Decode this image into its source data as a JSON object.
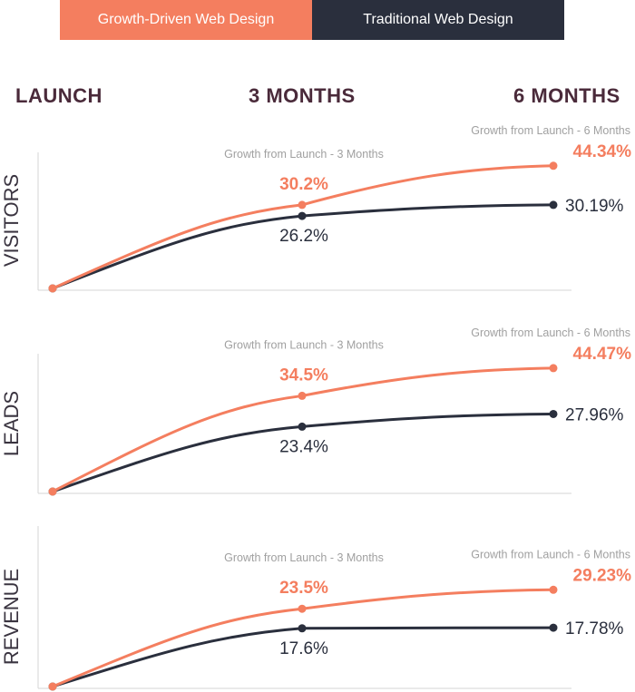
{
  "legend": {
    "growth_label": "Growth-Driven Web Design",
    "traditional_label": "Traditional Web Design",
    "growth_color": "#f47e5f",
    "traditional_color": "#2a2f3d"
  },
  "phases": [
    "LAUNCH",
    "3 MONTHS",
    "6 MONTHS"
  ],
  "chart_data": [
    {
      "type": "line",
      "ylabel": "VISITORS",
      "categories": [
        "LAUNCH",
        "3 MONTHS",
        "6 MONTHS"
      ],
      "series": [
        {
          "name": "Growth-Driven Web Design",
          "values": [
            0,
            30.2,
            44.34
          ],
          "labels": [
            "",
            "30.2%",
            "44.34%"
          ]
        },
        {
          "name": "Traditional Web Design",
          "values": [
            0,
            26.2,
            30.19
          ],
          "labels": [
            "",
            "26.2%",
            "30.19%"
          ]
        }
      ],
      "captions": [
        "Growth from Launch - 3 Months",
        "Growth from Launch - 6 Months"
      ]
    },
    {
      "type": "line",
      "ylabel": "LEADS",
      "categories": [
        "LAUNCH",
        "3 MONTHS",
        "6 MONTHS"
      ],
      "series": [
        {
          "name": "Growth-Driven Web Design",
          "values": [
            0,
            34.5,
            44.47
          ],
          "labels": [
            "",
            "34.5%",
            "44.47%"
          ]
        },
        {
          "name": "Traditional Web Design",
          "values": [
            0,
            23.4,
            27.96
          ],
          "labels": [
            "",
            "23.4%",
            "27.96%"
          ]
        }
      ],
      "captions": [
        "Growth from Launch - 3 Months",
        "Growth from Launch - 6 Months"
      ]
    },
    {
      "type": "line",
      "ylabel": "REVENUE",
      "categories": [
        "LAUNCH",
        "3 MONTHS",
        "6 MONTHS"
      ],
      "series": [
        {
          "name": "Growth-Driven Web Design",
          "values": [
            0,
            23.5,
            29.23
          ],
          "labels": [
            "",
            "23.5%",
            "29.23%"
          ]
        },
        {
          "name": "Traditional Web Design",
          "values": [
            0,
            17.6,
            17.78
          ],
          "labels": [
            "",
            "17.6%",
            "17.78%"
          ]
        }
      ],
      "captions": [
        "Growth from Launch - 3 Months",
        "Growth from Launch - 6 Months"
      ]
    }
  ]
}
